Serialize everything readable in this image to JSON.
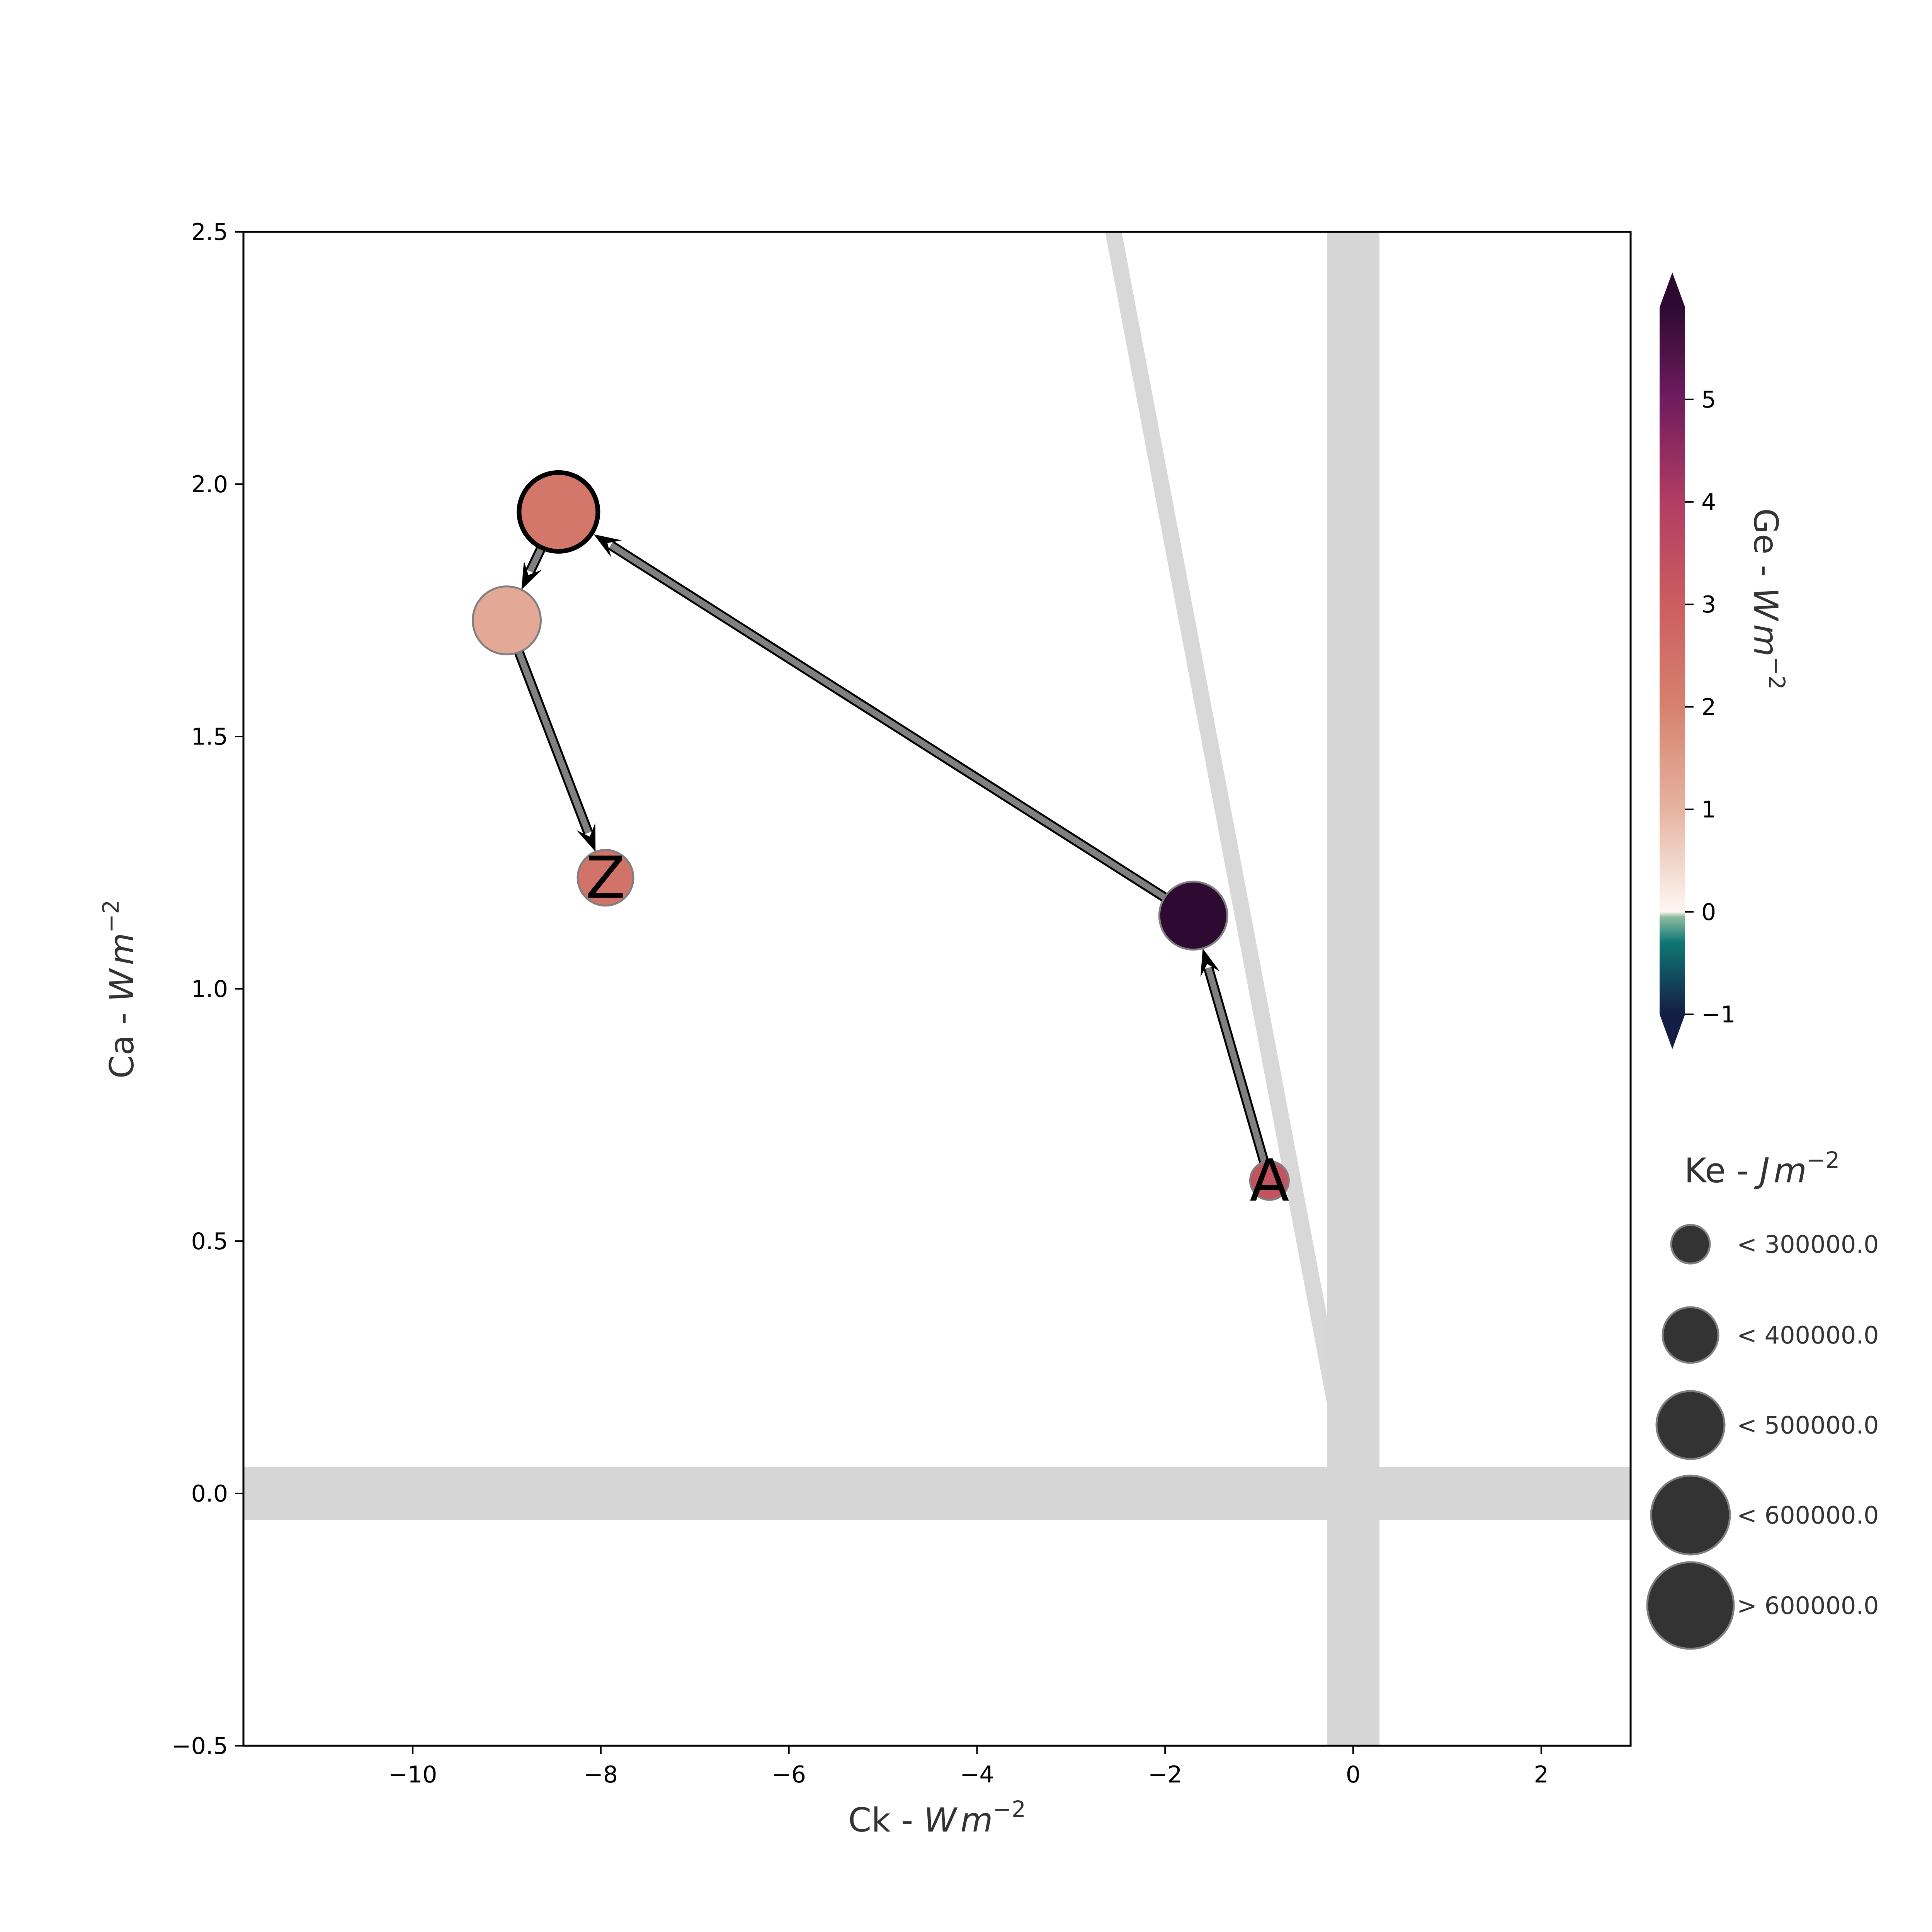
{
  "chart_data": {
    "type": "scatter",
    "title": "",
    "xlabel": {
      "prefix": "Ck -  ",
      "unit": "W",
      "unit2": "m",
      "exp": "−2"
    },
    "ylabel": {
      "prefix": "Ca -  ",
      "unit": "W",
      "unit2": "m",
      "exp": "−2"
    },
    "xlim": [
      -11.8,
      2.95
    ],
    "ylim": [
      -0.5,
      2.5
    ],
    "x_ticks": [
      -10,
      -8,
      -6,
      -4,
      -2,
      0,
      2
    ],
    "x_tick_labels": [
      "−10",
      "−8",
      "−6",
      "−4",
      "−2",
      "0",
      "2"
    ],
    "y_ticks": [
      -0.5,
      0.0,
      0.5,
      1.0,
      1.5,
      2.0,
      2.5
    ],
    "y_tick_labels": [
      "−0.5",
      "0.0",
      "0.5",
      "1.0",
      "1.5",
      "2.0",
      "2.5"
    ],
    "grid": false,
    "reference_lines": {
      "horizontal_band_y": 0.0,
      "vertical_band_x": 0.0,
      "diagonal_line": {
        "from": [
          0.0,
          -0.01
        ],
        "to": [
          -2.55,
          2.5
        ]
      }
    },
    "points": [
      {
        "label": "A",
        "x": -0.89,
        "y": 0.62,
        "ge": 3.3,
        "ke_class": 0,
        "highlight": false
      },
      {
        "label": "",
        "x": -1.7,
        "y": 1.145,
        "ge": 5.9,
        "ke_class": 2,
        "highlight": false
      },
      {
        "label": "",
        "x": -8.45,
        "y": 1.945,
        "ge": 2.3,
        "ke_class": 3,
        "highlight": true
      },
      {
        "label": "",
        "x": -9.0,
        "y": 1.73,
        "ge": 1.2,
        "ke_class": 2,
        "highlight": false
      },
      {
        "label": "Z",
        "x": -7.95,
        "y": 1.22,
        "ge": 2.4,
        "ke_class": 1,
        "highlight": false
      }
    ],
    "colorbar": {
      "title": {
        "prefix": "Ge -  ",
        "unit": "W",
        "unit2": "m",
        "exp": "−2"
      },
      "vmin": -1.0,
      "vmax": 5.9,
      "ticks": [
        -1,
        0,
        1,
        2,
        3,
        4,
        5
      ],
      "tick_labels": [
        "−1",
        "0",
        "1",
        "2",
        "3",
        "4",
        "5"
      ],
      "extend": "both",
      "colormap_stops": [
        {
          "v": -1.0,
          "color": "#141d43"
        },
        {
          "v": -0.3,
          "color": "#0f7675"
        },
        {
          "v": -0.05,
          "color": "#8ebc9f"
        },
        {
          "v": 0.0,
          "color": "#fdf7f3"
        },
        {
          "v": 1.0,
          "color": "#e6b3a0"
        },
        {
          "v": 2.0,
          "color": "#d6826f"
        },
        {
          "v": 3.0,
          "color": "#cc5d60"
        },
        {
          "v": 4.0,
          "color": "#b13d62"
        },
        {
          "v": 5.0,
          "color": "#701c5e"
        },
        {
          "v": 5.9,
          "color": "#2e0a33"
        }
      ]
    },
    "size_legend": {
      "title": {
        "prefix": "Ke -  ",
        "unit": "J",
        "unit2": "m",
        "exp": "−2"
      },
      "entries": [
        "< 300000.0",
        "< 400000.0",
        "< 500000.0",
        "< 600000.0",
        "> 600000.0"
      ],
      "marker_color": "#333333"
    },
    "colors": {
      "band": "#d6d6d6",
      "arrow_body": "#808080",
      "arrow_head": "#000000",
      "marker_edge": "#7f7f7f",
      "highlight_edge": "#000000"
    }
  }
}
